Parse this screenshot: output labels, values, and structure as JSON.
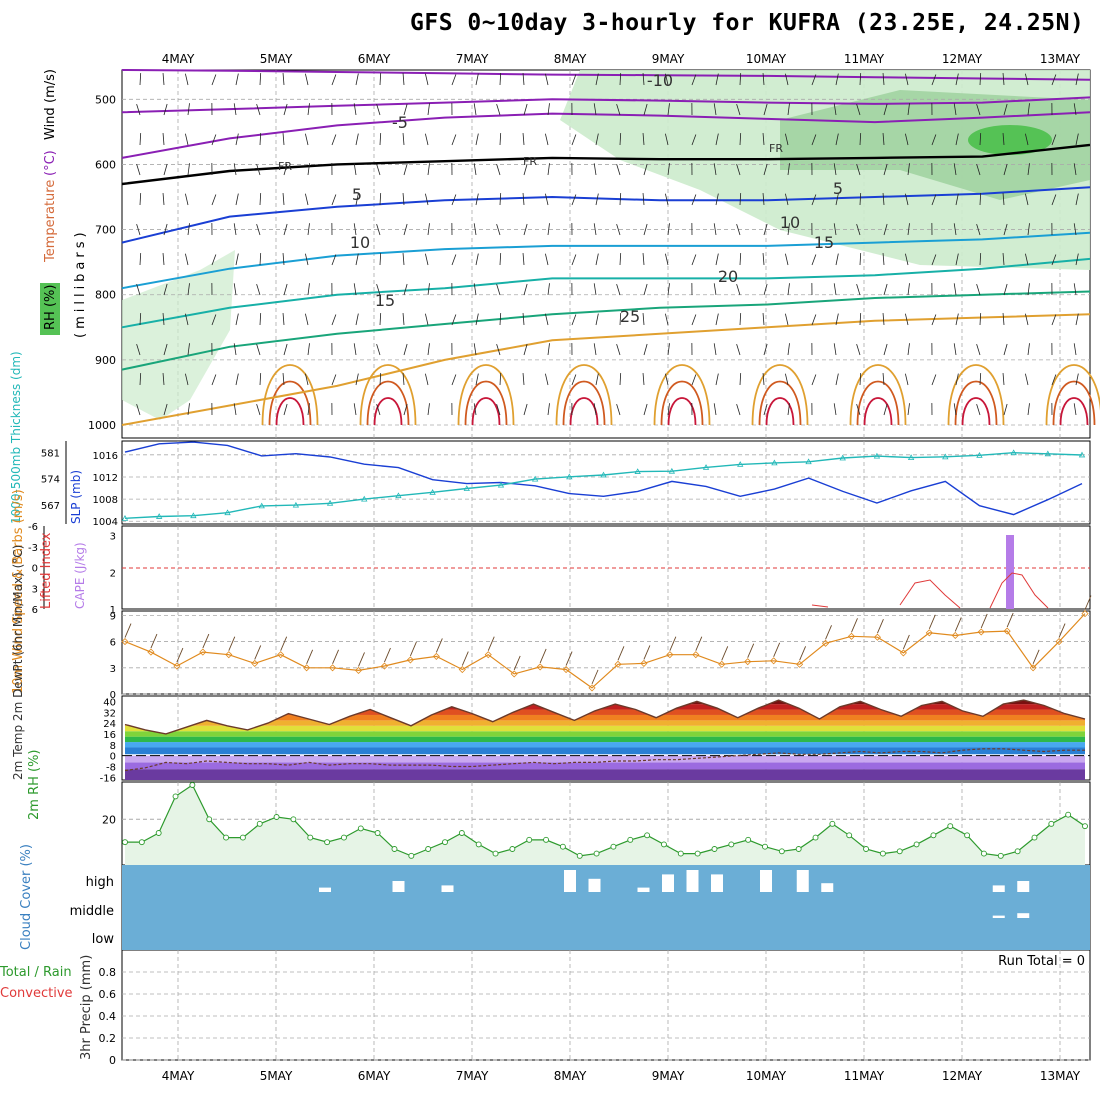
{
  "title": "GFS 0~10day 3-hourly for KUFRA (23.25E, 24.25N)",
  "colors": {
    "rh_fill": "#ccebcc",
    "rh_mid": "#9bcf9b",
    "rh_high": "#55c255",
    "blue": "#1a3fd4",
    "teal": "#22b8b8",
    "orange": "#e08a1e",
    "purple": "#b57ce8",
    "red": "#e03a3a",
    "cloud": "#6baed6",
    "green": "#2d9a2d"
  },
  "chart_data": [
    {
      "type": "line",
      "panel": "upper-air",
      "ylabel_parts": [
        "RH (%)",
        "Temperature",
        "(°C)",
        "Wind",
        "(m/s)"
      ],
      "ylabel2": "(millibars)",
      "x": [
        "4MAY",
        "5MAY",
        "6MAY",
        "7MAY",
        "8MAY",
        "9MAY",
        "10MAY",
        "11MAY",
        "12MAY",
        "13MAY"
      ],
      "yticks": [
        500,
        600,
        700,
        800,
        900,
        1000
      ],
      "ylim": [
        1000,
        455
      ],
      "contour_labels": [
        "-10",
        "-5",
        "FR",
        "FR",
        "FR",
        "5",
        "5",
        "10",
        "10",
        "15",
        "15",
        "20",
        "25"
      ],
      "series": [
        {
          "level": -10,
          "color": "#8a1fb4",
          "values": [
            455,
            456,
            458,
            460,
            462,
            463,
            464,
            466,
            468,
            470
          ]
        },
        {
          "level": -5,
          "color": "#8a1fb4",
          "values": [
            520,
            515,
            510,
            505,
            500,
            502,
            505,
            507,
            505,
            497
          ]
        },
        {
          "level": -2,
          "color": "#8a1fb4",
          "values": [
            590,
            560,
            540,
            528,
            522,
            525,
            530,
            535,
            528,
            520
          ]
        },
        {
          "level": 0,
          "color": "#000000",
          "values": [
            630,
            610,
            600,
            595,
            590,
            592,
            592,
            590,
            588,
            570
          ]
        },
        {
          "level": 5,
          "color": "#1a3fd4",
          "values": [
            720,
            680,
            665,
            655,
            650,
            655,
            655,
            650,
            645,
            635
          ]
        },
        {
          "level": 10,
          "color": "#1a9fd4",
          "values": [
            790,
            760,
            740,
            730,
            725,
            725,
            725,
            720,
            715,
            705
          ]
        },
        {
          "level": 15,
          "color": "#17b0a7",
          "values": [
            850,
            820,
            800,
            790,
            775,
            775,
            775,
            770,
            760,
            745
          ]
        },
        {
          "level": 20,
          "color": "#19a57a",
          "values": [
            915,
            880,
            860,
            845,
            830,
            820,
            815,
            805,
            800,
            795
          ]
        },
        {
          "level": 25,
          "color": "#e0a030",
          "values": [
            1000,
            970,
            940,
            900,
            870,
            860,
            850,
            840,
            835,
            830
          ]
        }
      ]
    },
    {
      "type": "line",
      "panel": "slp-thickness",
      "ylabel_left": "1000-500mb Thickness (dm)",
      "ylabel_right": "SLP (mb)",
      "yticks_thickness": [
        567,
        574,
        581
      ],
      "yticks_slp": [
        1004,
        1008,
        1012,
        1016
      ],
      "series": [
        {
          "name": "SLP",
          "color": "#1a3fd4",
          "values": [
            1016.5,
            1018,
            1018.3,
            1017.7,
            1015.8,
            1016.2,
            1015.6,
            1014.3,
            1013.7,
            1011.5,
            1010.8,
            1011,
            1010.4,
            1009,
            1008.5,
            1009.4,
            1011.2,
            1010.3,
            1008.5,
            1009.8,
            1011.8,
            1009.4,
            1007.3,
            1009.5,
            1011.2,
            1006.8,
            1005.2,
            1007.9,
            1010.8
          ]
        },
        {
          "name": "Thickness",
          "color": "#22b8b8",
          "values": [
            563.5,
            564,
            564.2,
            565,
            566.8,
            567,
            567.5,
            568.6,
            569.5,
            570.4,
            571.4,
            572.3,
            573.9,
            574.5,
            575,
            575.9,
            576,
            577,
            577.8,
            578.2,
            578.5,
            579.5,
            580,
            579.6,
            579.8,
            580.2,
            580.9,
            580.6,
            580.3
          ]
        }
      ]
    },
    {
      "type": "line",
      "panel": "cape-li",
      "ylabel_left": "Lifted Index",
      "ylabel_right": "CAPE (J/kg)",
      "yticks_li": [
        "-6",
        "-3",
        "0",
        "3",
        "6"
      ],
      "yticks_cape": [
        "1",
        "2",
        "3"
      ],
      "series": [
        {
          "name": "Lifted Index",
          "color": "#e03a3a",
          "values": [
            6,
            6,
            6,
            6,
            6,
            6,
            6,
            6,
            6,
            6,
            6,
            6,
            6,
            6,
            6,
            6,
            6,
            6,
            5.5,
            6,
            6,
            4.5,
            3,
            4,
            6,
            1,
            2,
            5,
            6
          ]
        },
        {
          "name": "CAPE",
          "color": "#b57ce8",
          "bar_at": "12MAY 12Z",
          "value": 3
        }
      ]
    },
    {
      "type": "line",
      "panel": "wind10m",
      "ylabel": "10m Wind Speed & Barbs (m/s)",
      "yticks": [
        "0",
        "3",
        "6",
        "9"
      ],
      "ylim": [
        0,
        9.5
      ],
      "values": [
        6,
        4.8,
        3.2,
        4.8,
        4.5,
        3.5,
        4.5,
        3,
        3,
        2.7,
        3.2,
        3.9,
        4.3,
        2.8,
        4.5,
        2.3,
        3.1,
        2.8,
        0.7,
        3.4,
        3.5,
        4.5,
        4.5,
        3.4,
        3.7,
        3.8,
        3.4,
        5.8,
        6.6,
        6.5,
        4.7,
        7,
        6.7,
        7.1,
        7.2,
        3,
        6,
        9.2
      ]
    },
    {
      "type": "area",
      "panel": "temp-dewpt",
      "ylabel": "2m Temp 2m DewPt (6hr Min/Max) (°C)",
      "yticks": [
        "40",
        "32",
        "24",
        "16",
        "8",
        "0",
        "-8",
        "-16"
      ],
      "ylim": [
        -18,
        44
      ],
      "temp": [
        23,
        19,
        16,
        21,
        26,
        22,
        19,
        24,
        31,
        27,
        23,
        29,
        34,
        28,
        22,
        30,
        36,
        31,
        25,
        32,
        38,
        32,
        26,
        33,
        38,
        34,
        28,
        35,
        40,
        35,
        28,
        35,
        41,
        35,
        27,
        36,
        40,
        34,
        29,
        37,
        40,
        33,
        29,
        38,
        41,
        37,
        31,
        27
      ],
      "dewpt": [
        -11,
        -9,
        -5,
        -6,
        -4,
        -5,
        -6,
        -6,
        -7,
        -5,
        -7,
        -6,
        -6,
        -7,
        -7,
        -7,
        -8,
        -8,
        -7,
        -6,
        -5,
        -6,
        -5,
        -5,
        -4,
        -4,
        -3,
        -3,
        -2,
        -1,
        0,
        1,
        2,
        1,
        1,
        2,
        3,
        2,
        3,
        3,
        2,
        4,
        5,
        5,
        4,
        3,
        4,
        4
      ]
    },
    {
      "type": "line",
      "panel": "rh2m",
      "ylabel": "2m RH (%)",
      "yticks": [
        "20"
      ],
      "ylim": [
        0,
        35
      ],
      "values": [
        10,
        10,
        14,
        30,
        35,
        20,
        12,
        12,
        18,
        21,
        20,
        12,
        10,
        12,
        16,
        14,
        7,
        4,
        7,
        10,
        14,
        9,
        5,
        7,
        11,
        11,
        8,
        4,
        5,
        8,
        11,
        13,
        9,
        5,
        5,
        7,
        9,
        11,
        8,
        6,
        7,
        12,
        18,
        13,
        7,
        5,
        6,
        9,
        13,
        17,
        13,
        5,
        4,
        6,
        12,
        18,
        22,
        17
      ]
    },
    {
      "type": "bar",
      "panel": "cloud",
      "ylabel": "Cloud Cover (%)",
      "levels": [
        "high",
        "middle",
        "low"
      ],
      "high_bars": [
        {
          "x": "5MAY 12Z",
          "v": 0.2
        },
        {
          "x": "6MAY 06Z",
          "v": 0.5
        },
        {
          "x": "6MAY 18Z",
          "v": 0.3
        },
        {
          "x": "8MAY 00Z",
          "v": 1
        },
        {
          "x": "8MAY 06Z",
          "v": 0.6
        },
        {
          "x": "8MAY 18Z",
          "v": 0.2
        },
        {
          "x": "9MAY 00Z",
          "v": 0.8
        },
        {
          "x": "9MAY 06Z",
          "v": 1
        },
        {
          "x": "9MAY 12Z",
          "v": 0.8
        },
        {
          "x": "10MAY 00Z",
          "v": 1
        },
        {
          "x": "10MAY 09Z",
          "v": 1
        },
        {
          "x": "10MAY 15Z",
          "v": 0.4
        },
        {
          "x": "12MAY 09Z",
          "v": 0.3
        },
        {
          "x": "12MAY 15Z",
          "v": 0.5
        }
      ],
      "mid_bars": [
        {
          "x": "12MAY 09Z",
          "v": 0.2
        },
        {
          "x": "12MAY 15Z",
          "v": 0.4
        }
      ]
    },
    {
      "type": "bar",
      "panel": "precip",
      "ylabel": "3hr Precip (mm)",
      "legend_parts": [
        "Total / Rain",
        "Convective"
      ],
      "yticks": [
        "0",
        "0.2",
        "0.4",
        "0.6",
        "0.8"
      ],
      "ylim": [
        0,
        1
      ],
      "values": [],
      "annotation": "Run Total = 0"
    }
  ]
}
